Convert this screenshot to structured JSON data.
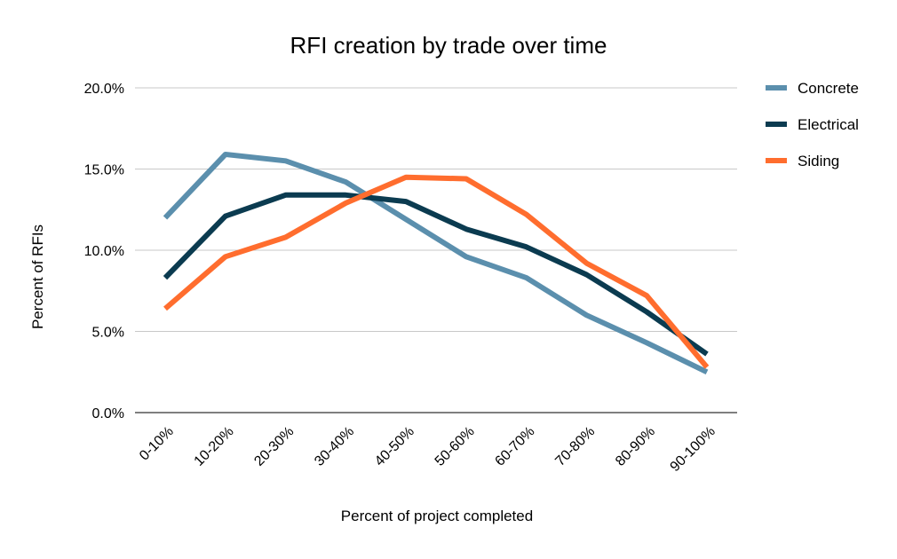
{
  "chart_data": {
    "type": "line",
    "title": "RFI creation by trade over time",
    "xlabel": "Percent of project completed",
    "ylabel": "Percent of RFIs",
    "categories": [
      "0-10%",
      "10-20%",
      "20-30%",
      "30-40%",
      "40-50%",
      "50-60%",
      "60-70%",
      "70-80%",
      "80-90%",
      "90-100%"
    ],
    "ylim": [
      0,
      20
    ],
    "yticks": [
      0,
      5,
      10,
      15,
      20
    ],
    "ytick_labels": [
      "0.0%",
      "5.0%",
      "10.0%",
      "15.0%",
      "20.0%"
    ],
    "grid": true,
    "legend_position": "right",
    "series": [
      {
        "name": "Concrete",
        "color": "#5b8fad",
        "values": [
          12.0,
          15.9,
          15.5,
          14.2,
          11.9,
          9.6,
          8.3,
          6.0,
          4.3,
          2.5
        ]
      },
      {
        "name": "Electrical",
        "color": "#0b3b50",
        "values": [
          8.3,
          12.1,
          13.4,
          13.4,
          13.0,
          11.3,
          10.2,
          8.5,
          6.2,
          3.6
        ]
      },
      {
        "name": "Siding",
        "color": "#ff6d2e",
        "values": [
          6.4,
          9.6,
          10.8,
          12.9,
          14.5,
          14.4,
          12.2,
          9.2,
          7.2,
          2.8
        ]
      }
    ]
  }
}
